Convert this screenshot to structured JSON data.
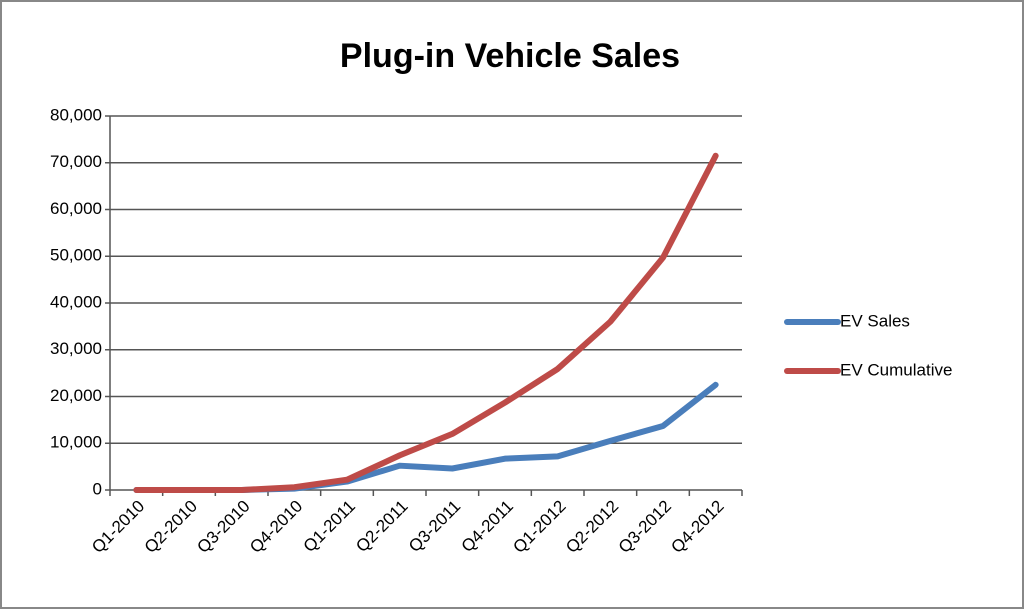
{
  "chart_data": {
    "type": "line",
    "title": "Plug-in Vehicle Sales",
    "categories": [
      "Q1-2010",
      "Q2-2010",
      "Q3-2010",
      "Q4-2010",
      "Q1-2011",
      "Q2-2011",
      "Q3-2011",
      "Q4-2011",
      "Q1-2012",
      "Q2-2012",
      "Q3-2012",
      "Q4-2012"
    ],
    "series": [
      {
        "name": "EV Sales",
        "color": "#4a7ebb",
        "values": [
          0,
          0,
          0,
          300,
          1800,
          5200,
          4600,
          6700,
          7200,
          10500,
          13700,
          22500
        ]
      },
      {
        "name": "EV Cumulative",
        "color": "#be4b48",
        "values": [
          0,
          0,
          0,
          600,
          2200,
          7400,
          12000,
          18700,
          25900,
          36000,
          49700,
          71500
        ]
      }
    ],
    "ylim": [
      0,
      80000
    ],
    "yticks": [
      0,
      {
        "value": 10000,
        "label": "10,000"
      },
      {
        "value": 20000,
        "label": "20,000"
      },
      {
        "value": 30000,
        "label": "30,000"
      },
      {
        "value": 40000,
        "label": "40,000"
      },
      {
        "value": 50000,
        "label": "50,000"
      },
      {
        "value": 60000,
        "label": "60,000"
      },
      {
        "value": 70000,
        "label": "70,000"
      },
      {
        "value": 80000,
        "label": "80,000"
      }
    ],
    "grid": true,
    "legend": "right"
  }
}
